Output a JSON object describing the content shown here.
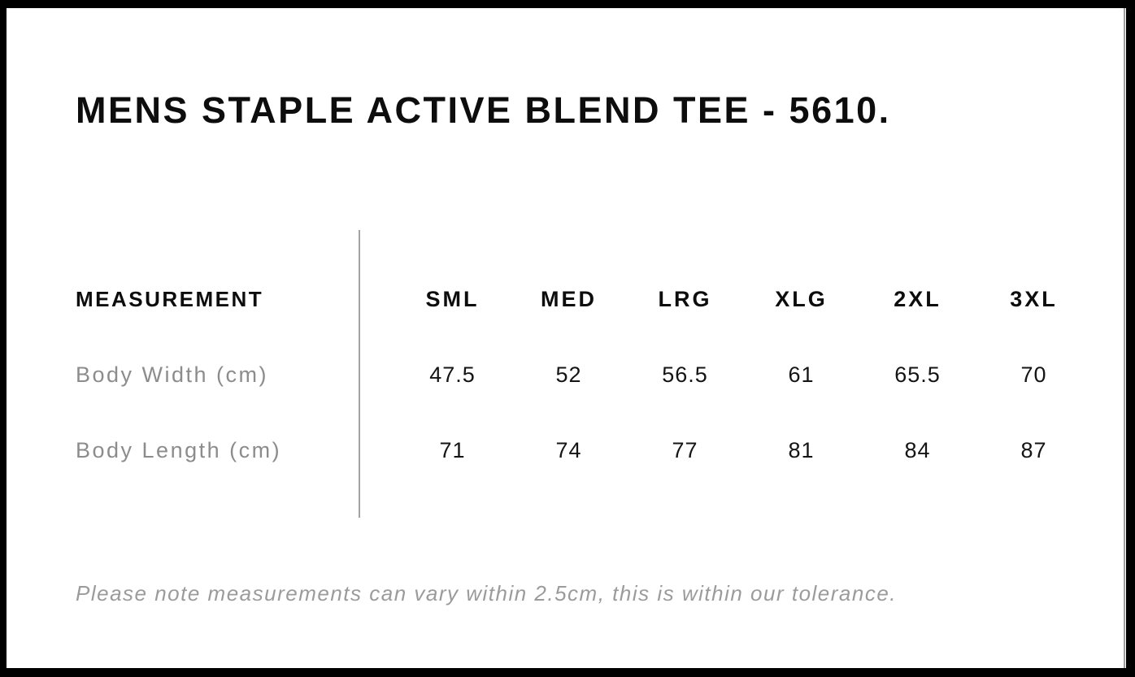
{
  "chart_data": {
    "type": "table",
    "title": "MENS STAPLE ACTIVE BLEND TEE - 5610.",
    "columns": [
      "MEASUREMENT",
      "SML",
      "MED",
      "LRG",
      "XLG",
      "2XL",
      "3XL"
    ],
    "rows": [
      [
        "Body Width (cm)",
        47.5,
        52,
        56.5,
        61,
        65.5,
        70
      ],
      [
        "Body Length (cm)",
        71,
        74,
        77,
        81,
        84,
        87
      ]
    ],
    "note": "Please note measurements can vary within 2.5cm, this is within our tolerance.",
    "layout": {
      "grid": "off",
      "label_column_divider": "vertical gray line between label column and size columns"
    }
  },
  "colors": {
    "page_background": "#ffffff",
    "frame_border": "#000000",
    "title_text": "#0d0d0d",
    "header_text": "#0d0d0d",
    "row_label_text": "#8c8c8c",
    "value_text": "#141414",
    "note_text": "#9b9b9b",
    "divider_line": "#a3a3a3"
  }
}
